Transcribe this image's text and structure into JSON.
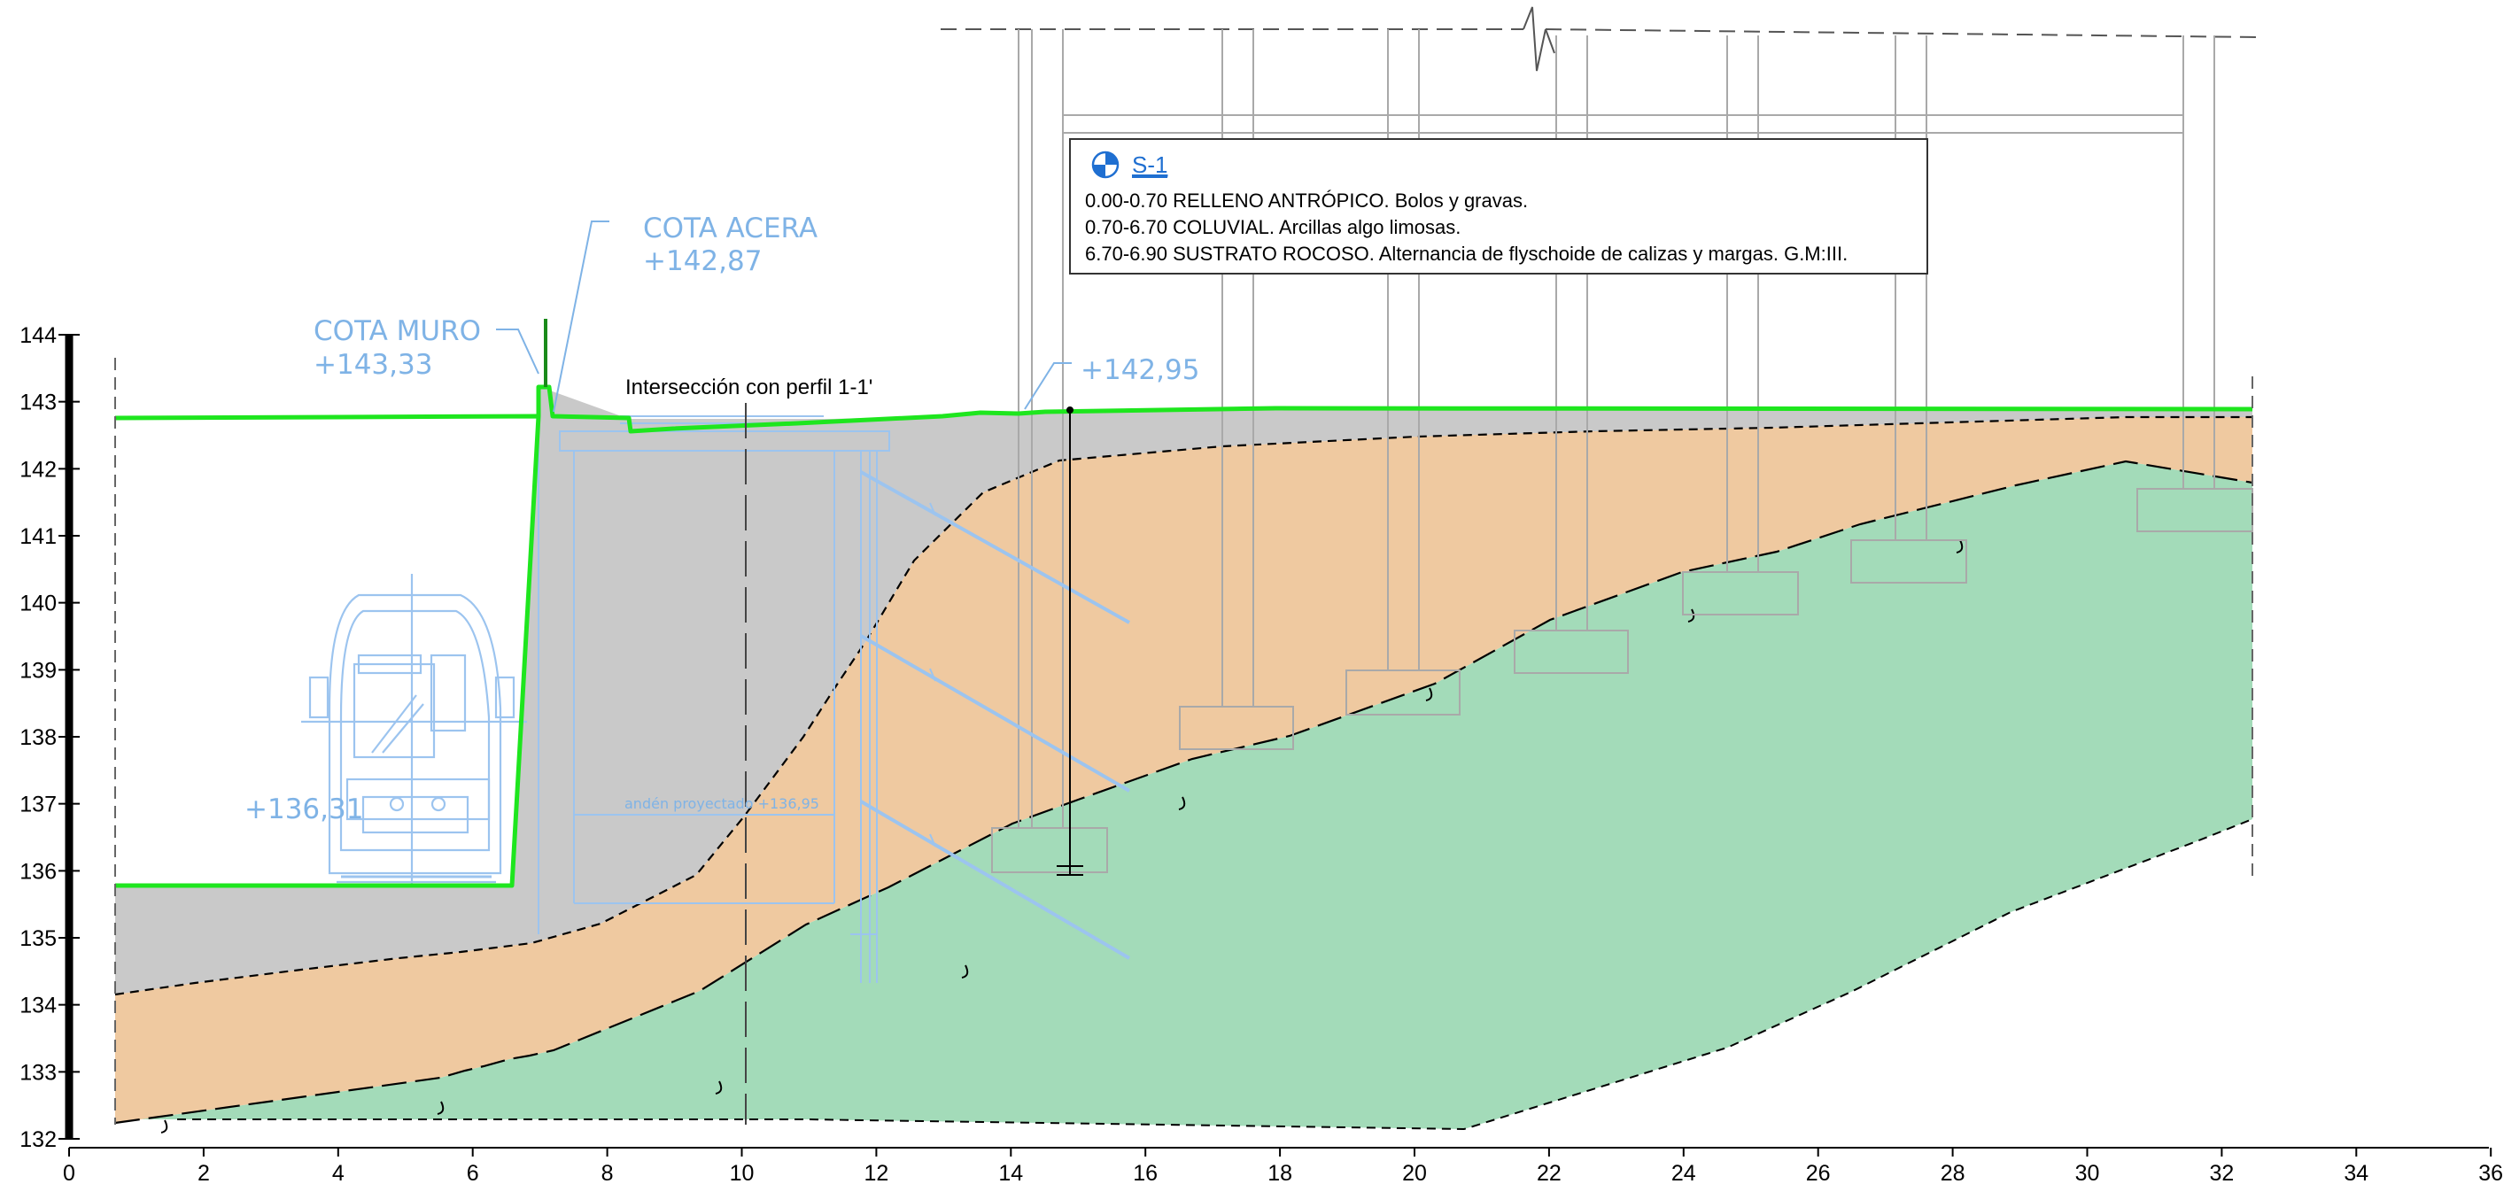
{
  "profile": {
    "x_ticks": [
      "0",
      "2",
      "4",
      "6",
      "8",
      "10",
      "12",
      "14",
      "16",
      "18",
      "20",
      "22",
      "24",
      "26",
      "28",
      "30",
      "32",
      "34",
      "36"
    ],
    "y_ticks": [
      "132",
      "133",
      "134",
      "135",
      "136",
      "137",
      "138",
      "139",
      "140",
      "141",
      "142",
      "143",
      "144"
    ]
  },
  "labels": {
    "cota_acera_title": "COTA ACERA",
    "cota_acera_value": "+142,87",
    "cota_muro_title": "COTA MURO",
    "cota_muro_value": "+143,33",
    "interseccion": "Intersección con perfil 1-1'",
    "cota_sondeo": "+142,95",
    "cota_via": "+136,31",
    "anden": "andén proyectado +136,95"
  },
  "borehole": {
    "id": "S-1",
    "lines": [
      "0.00-0.70 RELLENO ANTRÓPICO. Bolos y gravas.",
      "0.70-6.70 COLUVIAL. Arcillas algo limosas.",
      "6.70-6.90 SUSTRATO ROCOSO. Alternancia de flyschoide de calizas y margas. G.M:III."
    ]
  },
  "colors": {
    "relleno": "#c9c9c9",
    "coluvial": "#efc9a0",
    "sustrato": "#a3dbb9",
    "terreno": "#1ee61e",
    "cad_blue": "#7fb3e6"
  }
}
